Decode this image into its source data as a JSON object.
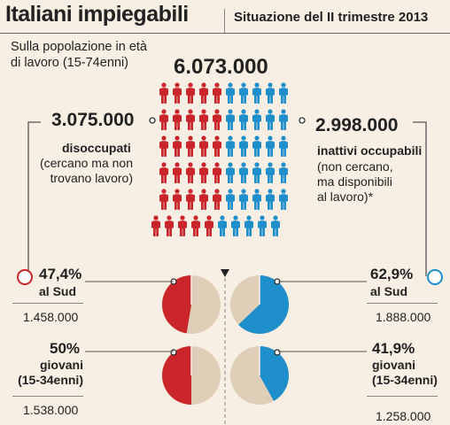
{
  "header": {
    "title": "Italiani impiegabili",
    "subtitle": "Situazione del II trimestre 2013"
  },
  "population": {
    "description_line1": "Sulla popolazione in età",
    "description_line2": "di lavoro (15-74enni)",
    "total": "6.073.000"
  },
  "disoccupati": {
    "value": "3.075.000",
    "label": "disoccupati",
    "desc_line1": "(cercano ma non",
    "desc_line2": "trovano lavoro)",
    "sud_pct": "47,4%",
    "sud_label": "al Sud",
    "sud_num": "1.458.000",
    "giovani_pct": "50%",
    "giovani_label1": "giovani",
    "giovani_label2": "(15-34enni)",
    "giovani_num": "1.538.000"
  },
  "inattivi": {
    "value": "2.998.000",
    "label": "inattivi occupabili",
    "desc_line1": "(non cercano,",
    "desc_line2": "ma disponibili",
    "desc_line3": "al lavoro)*",
    "sud_pct": "62,9%",
    "sud_label": "al Sud",
    "sud_num": "1.888.000",
    "giovani_pct": "41,9%",
    "giovani_label1": "giovani",
    "giovani_label2": "(15-34enni)",
    "giovani_num": "1.258.000"
  },
  "colors": {
    "red": "#c9252b",
    "blue": "#1f8fcb",
    "beige": "#dfcfb8",
    "background": "#f7eee4"
  },
  "chart_data": [
    {
      "type": "pictogram",
      "categories": [
        "disoccupati",
        "inattivi occupabili"
      ],
      "values": [
        3075000,
        2998000
      ],
      "total": 6073000
    },
    {
      "type": "pie",
      "categories": [
        "disoccupati al Sud",
        "disoccupati giovani (15-34enni)",
        "inattivi occupabili al Sud",
        "inattivi occupabili giovani (15-34enni)"
      ],
      "values": [
        47.4,
        50,
        62.9,
        41.9
      ]
    }
  ]
}
